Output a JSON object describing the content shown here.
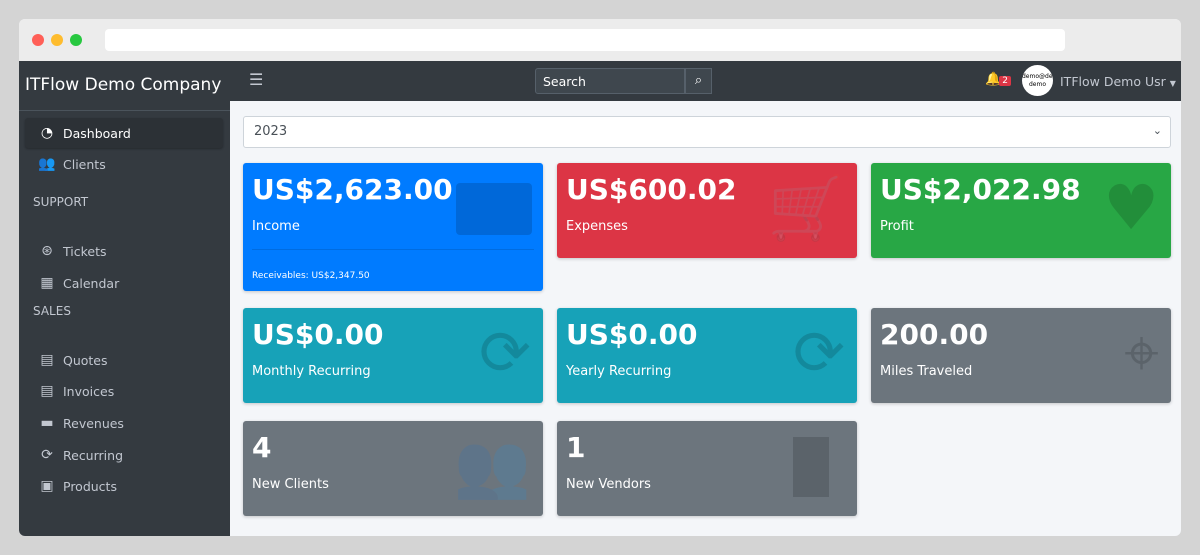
{
  "app": {
    "brand": "ITFlow Demo Company"
  },
  "colors": {
    "blue": "#007bff",
    "red": "#dc3545",
    "green": "#28a745",
    "teal": "#17a2b8",
    "gray": "#6c757d"
  },
  "sidebar": {
    "items": [
      {
        "label": "Dashboard",
        "icon": "tachometer-icon"
      },
      {
        "label": "Clients",
        "icon": "users-icon"
      },
      {
        "label": "Tickets",
        "icon": "life-ring-icon"
      },
      {
        "label": "Calendar",
        "icon": "calendar-icon"
      },
      {
        "label": "Quotes",
        "icon": "file-icon"
      },
      {
        "label": "Invoices",
        "icon": "invoice-icon"
      },
      {
        "label": "Revenues",
        "icon": "credit-card-icon"
      },
      {
        "label": "Recurring",
        "icon": "sync-icon"
      },
      {
        "label": "Products",
        "icon": "box-icon"
      }
    ],
    "headers": [
      "SUPPORT",
      "SALES"
    ]
  },
  "navbar": {
    "search_placeholder": "Search",
    "notifications": "2",
    "avatar_text": "demo@demo demo",
    "user": "ITFlow Demo Usr"
  },
  "filter": {
    "year": "2023"
  },
  "cards": [
    {
      "value": "US$2,623.00",
      "label": "Income",
      "footer": "Receivables: US$2,347.50"
    },
    {
      "value": "US$600.02",
      "label": "Expenses"
    },
    {
      "value": "US$2,022.98",
      "label": "Profit"
    },
    {
      "value": "US$0.00",
      "label": "Monthly Recurring"
    },
    {
      "value": "US$0.00",
      "label": "Yearly Recurring"
    },
    {
      "value": "200.00",
      "label": "Miles Traveled"
    },
    {
      "value": "4",
      "label": "New Clients"
    },
    {
      "value": "1",
      "label": "New Vendors"
    }
  ]
}
